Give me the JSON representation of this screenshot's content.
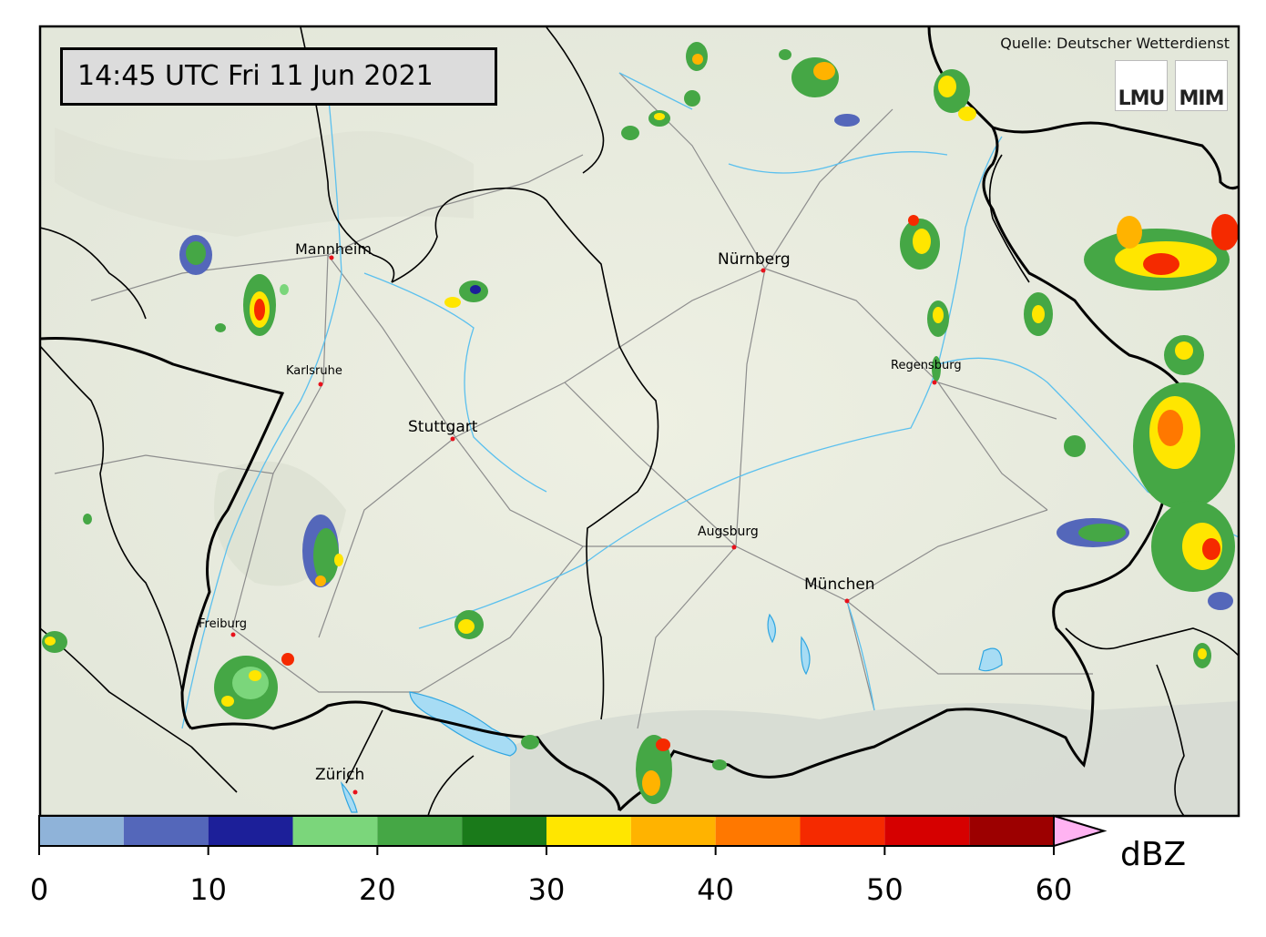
{
  "timestamp": "14:45 UTC  Fri 11 Jun 2021",
  "source": "Quelle: Deutscher Wetterdienst",
  "logos": [
    "LMU",
    "MIM"
  ],
  "cities": [
    {
      "name": "Mannheim"
    },
    {
      "name": "Nürnberg"
    },
    {
      "name": "Karlsruhe"
    },
    {
      "name": "Regensburg"
    },
    {
      "name": "Stuttgart"
    },
    {
      "name": "Augsburg"
    },
    {
      "name": "München"
    },
    {
      "name": "Freiburg"
    },
    {
      "name": "Zürich"
    }
  ],
  "colorbar": {
    "unit": "dBZ",
    "ticks": [
      "0",
      "10",
      "20",
      "30",
      "40",
      "50",
      "60"
    ],
    "bins": [
      {
        "from": 0,
        "to": 5,
        "color": "#8fb3d9"
      },
      {
        "from": 5,
        "to": 10,
        "color": "#5467ba"
      },
      {
        "from": 10,
        "to": 15,
        "color": "#1c1f99"
      },
      {
        "from": 15,
        "to": 20,
        "color": "#7bd67b"
      },
      {
        "from": 20,
        "to": 25,
        "color": "#45a745"
      },
      {
        "from": 25,
        "to": 30,
        "color": "#1a7a1a"
      },
      {
        "from": 30,
        "to": 35,
        "color": "#ffe600"
      },
      {
        "from": 35,
        "to": 40,
        "color": "#ffb300"
      },
      {
        "from": 40,
        "to": 45,
        "color": "#ff7800"
      },
      {
        "from": 45,
        "to": 50,
        "color": "#f52a00"
      },
      {
        "from": 50,
        "to": 55,
        "color": "#d60000"
      },
      {
        "from": 55,
        "to": 60,
        "color": "#9c0000"
      }
    ],
    "extend_color": "#ffb3f2"
  }
}
